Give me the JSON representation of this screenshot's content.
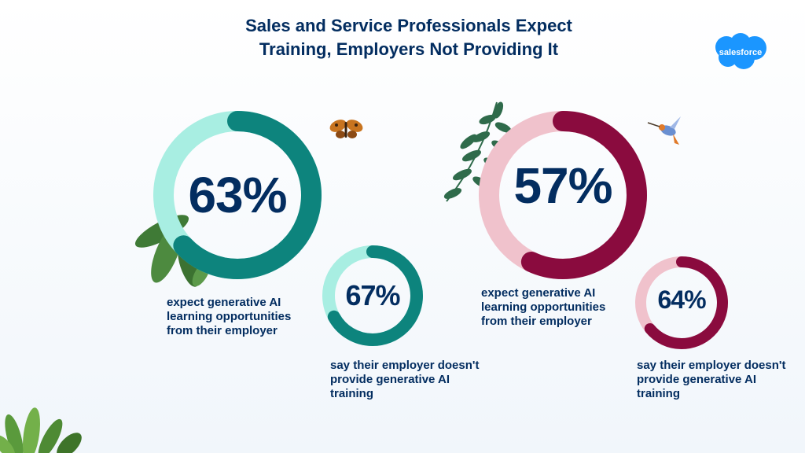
{
  "title": {
    "line1": "Sales and Service Professionals Expect",
    "line2": "Training, Employers Not Providing It"
  },
  "logo": {
    "text": "salesforce",
    "color": "#1b96ff"
  },
  "colors": {
    "teal_dark": "#0d847d",
    "teal_light": "#a8eee2",
    "maroon": "#8a0b3e",
    "pink_light": "#f0c2cc",
    "navy": "#032d60"
  },
  "chart_data": [
    {
      "type": "pie",
      "style": "donut",
      "value_label": "63%",
      "values": [
        63,
        37
      ],
      "caption_lines": [
        "expect generative AI",
        "learning opportunities",
        "from their employer"
      ]
    },
    {
      "type": "pie",
      "style": "donut",
      "value_label": "67%",
      "values": [
        67,
        33
      ],
      "caption_lines": [
        "say their employer doesn't",
        "provide generative AI",
        "training"
      ]
    },
    {
      "type": "pie",
      "style": "donut",
      "value_label": "57%",
      "values": [
        57,
        43
      ],
      "caption_lines": [
        "expect generative AI",
        "learning opportunities",
        "from their employer"
      ]
    },
    {
      "type": "pie",
      "style": "donut",
      "value_label": "64%",
      "values": [
        64,
        36
      ],
      "caption_lines": [
        "say their employer doesn't",
        "provide generative AI",
        "training"
      ]
    }
  ],
  "icons": [
    "butterfly-icon",
    "hummingbird-icon",
    "fern-leaf-icon",
    "leaf-cluster-icon",
    "plant-icon"
  ]
}
